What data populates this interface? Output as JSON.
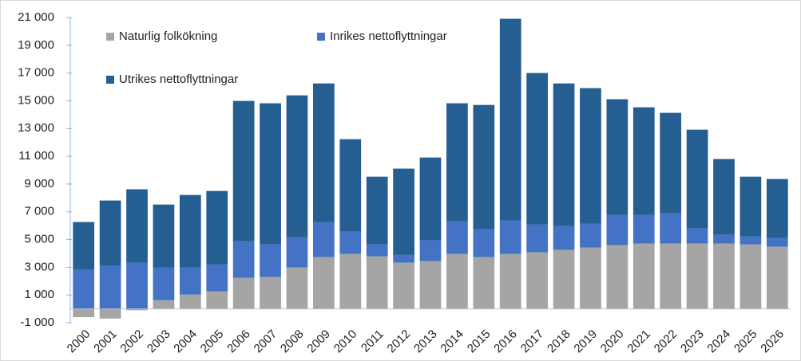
{
  "chart_data": {
    "type": "stacked-bar",
    "categories": [
      "2000",
      "2001",
      "2002",
      "2003",
      "2004",
      "2005",
      "2006",
      "2007",
      "2008",
      "2009",
      "2010",
      "2011",
      "2012",
      "2013",
      "2014",
      "2015",
      "2016",
      "2017",
      "2018",
      "2019",
      "2020",
      "2021",
      "2022",
      "2023",
      "2024",
      "2025",
      "2026"
    ],
    "series": [
      {
        "name": "Naturlig folkökning",
        "color": "#a5a5a5",
        "values": [
          -600,
          -700,
          -100,
          630,
          1030,
          1260,
          2240,
          2300,
          2990,
          3730,
          3960,
          3790,
          3330,
          3450,
          3960,
          3730,
          3960,
          4080,
          4250,
          4420,
          4600,
          4710,
          4710,
          4710,
          4710,
          4650,
          4480
        ]
      },
      {
        "name": "Inrikes nettoflyttningar",
        "color": "#4472c4",
        "values": [
          2850,
          3100,
          3330,
          2360,
          1960,
          1960,
          2640,
          2350,
          2180,
          2530,
          1610,
          860,
          580,
          1490,
          2360,
          2010,
          2420,
          2010,
          1720,
          1730,
          2180,
          2070,
          2180,
          1090,
          630,
          580,
          630
        ]
      },
      {
        "name": "Utrikes nettoflyttningar",
        "color": "#255e91",
        "values": [
          3410,
          4710,
          5290,
          4530,
          5220,
          5280,
          10110,
          10170,
          10220,
          9990,
          6660,
          4880,
          6200,
          5970,
          8500,
          8960,
          14530,
          10910,
          10280,
          9760,
          8330,
          7750,
          7240,
          7120,
          5460,
          4300,
          4250
        ]
      }
    ],
    "ylim": [
      -1000,
      21000
    ],
    "yticks": [
      {
        "value": -1000,
        "label": "-1 000"
      },
      {
        "value": 1000,
        "label": "1 000"
      },
      {
        "value": 3000,
        "label": "3 000"
      },
      {
        "value": 5000,
        "label": "5 000"
      },
      {
        "value": 7000,
        "label": "7 000"
      },
      {
        "value": 9000,
        "label": "9 000"
      },
      {
        "value": 11000,
        "label": "11 000"
      },
      {
        "value": 13000,
        "label": "13 000"
      },
      {
        "value": 15000,
        "label": "15 000"
      },
      {
        "value": 17000,
        "label": "17 000"
      },
      {
        "value": 19000,
        "label": "19 000"
      },
      {
        "value": 21000,
        "label": "21 000"
      }
    ],
    "grid": false,
    "legend": "upper-left"
  }
}
